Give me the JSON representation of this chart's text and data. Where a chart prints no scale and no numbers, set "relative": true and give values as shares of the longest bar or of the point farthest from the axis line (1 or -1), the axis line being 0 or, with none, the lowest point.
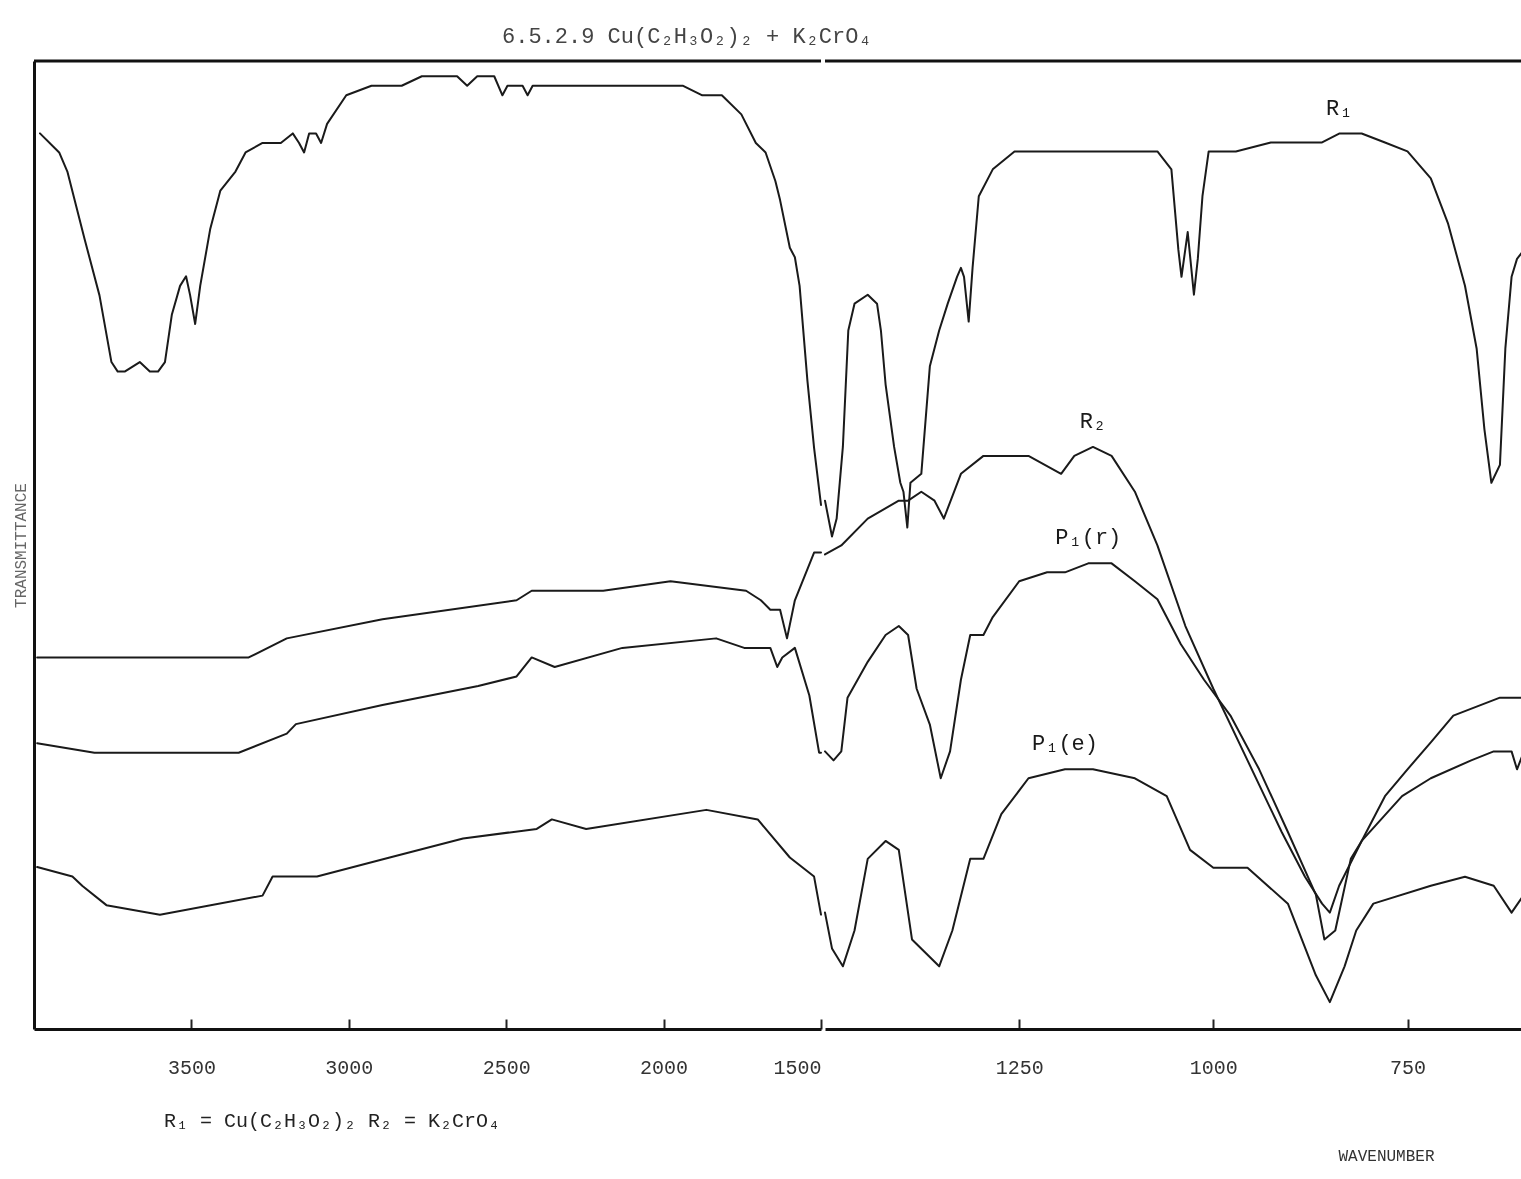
{
  "chart_data": [
    {
      "type": "line",
      "grid": false,
      "legend": false,
      "title": "6.5.2.9 Cu(C₂H₃O₂)₂ + K₂CrO₄",
      "ylabel": "TRANSMITTANCE",
      "relative": true,
      "xlim": [
        4000,
        1500
      ],
      "xticks": [
        3500,
        3000,
        2500,
        2000,
        1500
      ],
      "annotations": [
        "R₁ = Cu(C₂H₃O₂)₂   R₂ = K₂CrO₄"
      ],
      "series": [
        {
          "color": "#1a1a1a",
          "x": [
            3981,
            3920,
            3894,
            3840,
            3792,
            3754,
            3734,
            3712,
            3664,
            3632,
            3606,
            3584,
            3562,
            3536,
            3517,
            3504,
            3488,
            3472,
            3440,
            3408,
            3360,
            3328,
            3274,
            3216,
            3178,
            3158,
            3142,
            3126,
            3104,
            3088,
            3069,
            3008,
            2928,
            2832,
            2768,
            2656,
            2624,
            2592,
            2538,
            2512,
            2496,
            2448,
            2432,
            2416,
            2320,
            2192,
            2064,
            1938,
            1877,
            1815,
            1753,
            1707,
            1676,
            1645,
            1630,
            1599,
            1583,
            1568,
            1543,
            1522,
            1500
          ],
          "values": [
            0.94,
            0.92,
            0.9,
            0.83,
            0.77,
            0.7,
            0.69,
            0.69,
            0.7,
            0.69,
            0.69,
            0.7,
            0.75,
            0.78,
            0.79,
            0.77,
            0.74,
            0.78,
            0.84,
            0.88,
            0.9,
            0.92,
            0.93,
            0.93,
            0.94,
            0.93,
            0.92,
            0.94,
            0.94,
            0.93,
            0.95,
            0.98,
            0.99,
            0.99,
            1.0,
            1.0,
            0.99,
            1.0,
            1.0,
            0.98,
            0.99,
            0.99,
            0.98,
            0.99,
            0.99,
            0.99,
            0.99,
            0.99,
            0.98,
            0.98,
            0.96,
            0.93,
            0.92,
            0.89,
            0.87,
            0.82,
            0.81,
            0.78,
            0.68,
            0.61,
            0.55
          ]
        },
        {
          "color": "#1a1a1a",
          "x": [
            3990,
            3792,
            3536,
            3318,
            3197,
            2893,
            2467,
            2419,
            2192,
            1978,
            1738,
            1691,
            1661,
            1630,
            1608,
            1583,
            1522,
            1500
          ],
          "values": [
            0.39,
            0.39,
            0.39,
            0.39,
            0.41,
            0.43,
            0.45,
            0.46,
            0.46,
            0.47,
            0.46,
            0.45,
            0.44,
            0.44,
            0.41,
            0.45,
            0.5,
            0.5
          ]
        },
        {
          "color": "#1a1a1a",
          "x": [
            3990,
            3808,
            3610,
            3350,
            3197,
            3168,
            2893,
            2589,
            2467,
            2419,
            2346,
            2131,
            1833,
            1744,
            1661,
            1639,
            1623,
            1583,
            1537,
            1506,
            1500
          ],
          "values": [
            0.3,
            0.29,
            0.29,
            0.29,
            0.31,
            0.32,
            0.34,
            0.36,
            0.37,
            0.39,
            0.38,
            0.4,
            0.41,
            0.4,
            0.4,
            0.38,
            0.39,
            0.4,
            0.35,
            0.29,
            0.29
          ]
        },
        {
          "color": "#1a1a1a",
          "x": [
            3990,
            3878,
            3846,
            3770,
            3600,
            3274,
            3242,
            3101,
            2870,
            2637,
            2403,
            2355,
            2246,
            1864,
            1701,
            1599,
            1522,
            1500
          ],
          "values": [
            0.17,
            0.16,
            0.15,
            0.13,
            0.12,
            0.14,
            0.16,
            0.16,
            0.18,
            0.2,
            0.21,
            0.22,
            0.21,
            0.23,
            0.22,
            0.18,
            0.16,
            0.12
          ]
        }
      ]
    },
    {
      "type": "line",
      "grid": false,
      "legend": false,
      "xlabel": "WAVENUMBER",
      "relative": true,
      "xlim": [
        1500,
        600
      ],
      "xticks": [
        1250,
        1000,
        750
      ],
      "series": [
        {
          "name": "R₁",
          "color": "#1a1a1a",
          "x": [
            1500,
            1491,
            1485,
            1477,
            1470,
            1462,
            1445,
            1433,
            1428,
            1422,
            1411,
            1403,
            1399,
            1394,
            1390,
            1376,
            1365,
            1353,
            1342,
            1330,
            1325,
            1321,
            1315,
            1310,
            1302,
            1284,
            1256,
            1226,
            1179,
            1119,
            1072,
            1054,
            1045,
            1041,
            1033,
            1025,
            1020,
            1014,
            1006,
            971,
            926,
            897,
            860,
            838,
            809,
            779,
            750,
            720,
            698,
            676,
            661,
            651,
            642,
            631,
            624,
            616,
            609,
            600
          ],
          "values": [
            0.59,
            0.55,
            0.57,
            0.65,
            0.78,
            0.81,
            0.82,
            0.81,
            0.78,
            0.72,
            0.65,
            0.61,
            0.6,
            0.56,
            0.61,
            0.62,
            0.74,
            0.78,
            0.81,
            0.84,
            0.85,
            0.84,
            0.79,
            0.85,
            0.93,
            0.96,
            0.98,
            0.98,
            0.98,
            0.98,
            0.98,
            0.96,
            0.87,
            0.84,
            0.89,
            0.82,
            0.86,
            0.93,
            0.98,
            0.98,
            0.99,
            0.99,
            0.99,
            1.0,
            1.0,
            0.99,
            0.98,
            0.95,
            0.9,
            0.83,
            0.76,
            0.67,
            0.61,
            0.63,
            0.76,
            0.84,
            0.86,
            0.87
          ]
        },
        {
          "name": "R₂",
          "color": "#1a1a1a",
          "x": [
            1500,
            1479,
            1445,
            1405,
            1393,
            1376,
            1359,
            1347,
            1325,
            1296,
            1267,
            1238,
            1196,
            1179,
            1155,
            1131,
            1101,
            1072,
            1036,
            1000,
            956,
            912,
            882,
            860,
            850,
            838,
            809,
            779,
            750,
            720,
            691,
            661,
            631,
            600
          ],
          "values": [
            0.53,
            0.54,
            0.57,
            0.59,
            0.59,
            0.6,
            0.59,
            0.57,
            0.62,
            0.64,
            0.64,
            0.64,
            0.62,
            0.64,
            0.65,
            0.64,
            0.6,
            0.54,
            0.45,
            0.38,
            0.3,
            0.22,
            0.17,
            0.14,
            0.13,
            0.16,
            0.21,
            0.26,
            0.29,
            0.32,
            0.35,
            0.36,
            0.37,
            0.37
          ]
        },
        {
          "name": "P₁(r)",
          "color": "#1a1a1a",
          "x": [
            1500,
            1489,
            1479,
            1471,
            1445,
            1422,
            1405,
            1393,
            1382,
            1365,
            1351,
            1339,
            1325,
            1313,
            1296,
            1284,
            1250,
            1214,
            1191,
            1161,
            1131,
            1101,
            1072,
            1042,
            1012,
            978,
            941,
            904,
            868,
            857,
            843,
            823,
            809,
            757,
            720,
            668,
            639,
            616,
            609,
            600
          ],
          "values": [
            0.31,
            0.3,
            0.31,
            0.37,
            0.41,
            0.44,
            0.45,
            0.44,
            0.38,
            0.34,
            0.28,
            0.31,
            0.39,
            0.44,
            0.44,
            0.46,
            0.5,
            0.51,
            0.51,
            0.52,
            0.52,
            0.5,
            0.48,
            0.43,
            0.39,
            0.35,
            0.29,
            0.22,
            0.15,
            0.1,
            0.11,
            0.19,
            0.21,
            0.26,
            0.28,
            0.3,
            0.31,
            0.31,
            0.29,
            0.31
          ]
        },
        {
          "name": "P₁(e)",
          "color": "#1a1a1a",
          "x": [
            1500,
            1491,
            1477,
            1462,
            1445,
            1422,
            1405,
            1388,
            1353,
            1336,
            1313,
            1296,
            1273,
            1238,
            1191,
            1155,
            1101,
            1060,
            1030,
            1000,
            956,
            904,
            868,
            850,
            831,
            816,
            794,
            720,
            676,
            639,
            616,
            600
          ],
          "values": [
            0.13,
            0.09,
            0.07,
            0.11,
            0.19,
            0.21,
            0.2,
            0.1,
            0.07,
            0.11,
            0.19,
            0.19,
            0.24,
            0.28,
            0.29,
            0.29,
            0.28,
            0.26,
            0.2,
            0.18,
            0.18,
            0.14,
            0.06,
            0.03,
            0.07,
            0.11,
            0.14,
            0.16,
            0.17,
            0.16,
            0.13,
            0.15
          ]
        }
      ]
    }
  ]
}
